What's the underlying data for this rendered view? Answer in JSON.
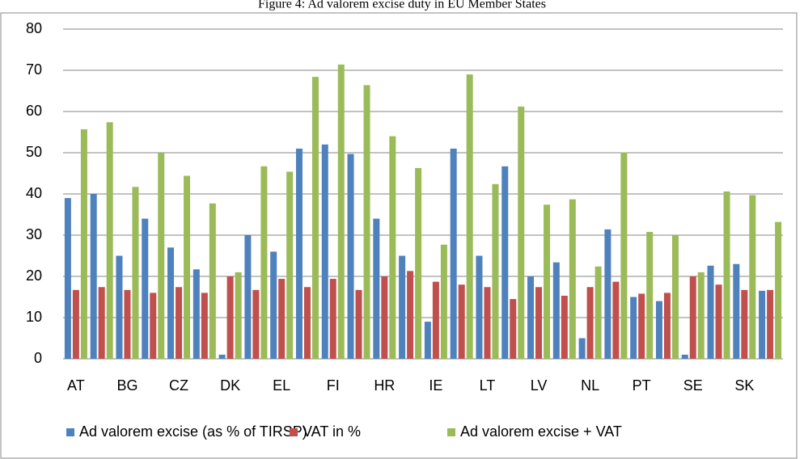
{
  "chart_data": {
    "type": "bar",
    "title": "Figure 4: Ad valorem excise duty in EU Member States",
    "categories": [
      "AT",
      null,
      "BG",
      null,
      "CZ",
      null,
      "DK",
      null,
      "EL",
      null,
      "FI",
      null,
      "HR",
      null,
      "IE",
      null,
      "LT",
      null,
      "LV",
      null,
      "NL",
      null,
      "PT",
      null,
      "SE",
      null,
      "SK",
      null
    ],
    "series": [
      {
        "name": "Ad valorem excise (as % of TIRSP)",
        "color": "#4f81bd",
        "values": [
          39,
          40,
          25,
          34,
          27,
          21.7,
          1,
          30,
          26,
          51,
          52,
          49.7,
          34,
          25,
          9,
          51,
          25,
          46.7,
          20,
          23.4,
          5,
          31.4,
          15,
          14,
          1,
          22.6,
          23,
          16.5
        ]
      },
      {
        "name": "VAT in %",
        "color": "#c0504d",
        "values": [
          16.7,
          17.4,
          16.7,
          16,
          17.4,
          16,
          20,
          16.7,
          19.4,
          17.4,
          19.4,
          16.7,
          20,
          21.3,
          18.7,
          18,
          17.4,
          14.5,
          17.4,
          15.3,
          17.4,
          18.7,
          15.8,
          16,
          20,
          18,
          16.7,
          16.7
        ]
      },
      {
        "name": "Ad valorem excise + VAT",
        "color": "#9bbb59",
        "values": [
          55.7,
          57.4,
          41.7,
          50,
          44.4,
          37.7,
          21,
          46.7,
          45.4,
          68.4,
          71.4,
          66.4,
          54,
          46.3,
          27.7,
          69,
          42.4,
          61.2,
          37.4,
          38.7,
          22.4,
          50.1,
          30.8,
          30,
          21,
          40.6,
          39.7,
          33.2
        ]
      }
    ],
    "ylim": [
      0,
      80
    ],
    "yticks": [
      0,
      10,
      20,
      30,
      40,
      50,
      60,
      70,
      80
    ],
    "grid": true,
    "legend": "bottom"
  }
}
